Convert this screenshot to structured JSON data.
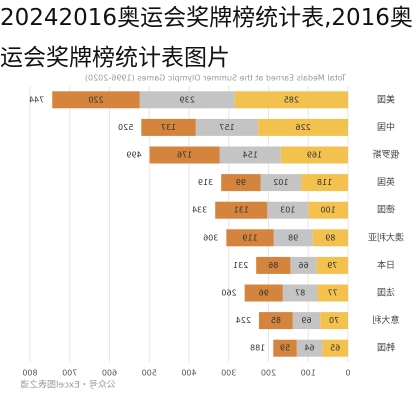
{
  "chart_data": {
    "type": "stacked_barh",
    "title": "20242016奥运会奖牌榜统计表,2016奥运会奖牌榜统计表图片",
    "subtitle": "Total Medals Earned at the Summer Olympic Games (1996-2020)",
    "annotation": "公众号・Excel图表之道",
    "categories": [
      "美国",
      "中国",
      "俄罗斯",
      "英国",
      "德国",
      "澳大利亚",
      "日本",
      "法国",
      "意大利",
      "韩国"
    ],
    "series": [
      {
        "color": "#f2c14e",
        "values": [
          285,
          226,
          169,
          118,
          100,
          89,
          79,
          77,
          70,
          65
        ]
      },
      {
        "color": "#c4c4c4",
        "values": [
          239,
          157,
          154,
          102,
          103,
          98,
          66,
          87,
          69,
          64
        ]
      },
      {
        "color": "#d4843c",
        "values": [
          220,
          137,
          176,
          99,
          131,
          119,
          86,
          96,
          85,
          59
        ]
      }
    ],
    "total_labels": [
      744,
      520,
      499,
      319,
      334,
      306,
      231,
      260,
      224,
      188
    ],
    "xlim": [
      0,
      800
    ],
    "xticks": [
      0,
      100,
      200,
      300,
      400,
      500,
      600,
      700,
      800
    ],
    "mirrored": true,
    "grid": true
  }
}
